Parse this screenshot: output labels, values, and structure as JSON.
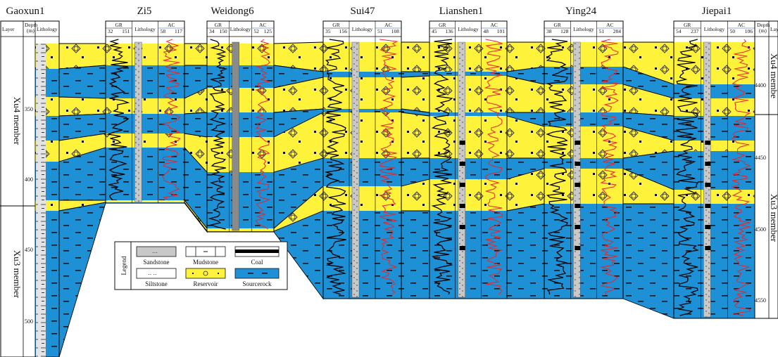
{
  "wells": [
    {
      "name": "Gaoxun1",
      "gr": [],
      "ac": [],
      "depth_label": "Depth\n(m)",
      "lith_label": "Lithology"
    },
    {
      "name": "Zi5",
      "gr": [
        "32",
        "151"
      ],
      "ac": [
        "58",
        "117"
      ]
    },
    {
      "name": "Weidong6",
      "gr": [
        "34",
        "150"
      ],
      "ac": [
        "52",
        "125"
      ]
    },
    {
      "name": "Sui47",
      "gr": [
        "35",
        "156"
      ],
      "ac": [
        "51",
        "108"
      ]
    },
    {
      "name": "Lianshen1",
      "gr": [
        "45",
        "136"
      ],
      "ac": [
        "48",
        "101"
      ]
    },
    {
      "name": "Ying24",
      "gr": [
        "38",
        "128"
      ],
      "ac": [
        "51",
        "284"
      ]
    },
    {
      "name": "Jiepai1",
      "gr": [
        "54",
        "237"
      ],
      "ac": [
        "50",
        "106"
      ]
    }
  ],
  "headers": {
    "layer": "Layer",
    "depth": "Depth",
    "depth_unit": "(m)",
    "lithology": "Lithology",
    "gr": "GR",
    "ac": "AC",
    "right_layer": "Lay"
  },
  "left_depth_ticks": [
    "350",
    "400",
    "450",
    "500"
  ],
  "right_depth_ticks": [
    "4400",
    "4450",
    "4500",
    "4550"
  ],
  "layers_left": [
    "Xu4 member",
    "Xu3 member"
  ],
  "layers_right": [
    "Xu4 membe",
    "Xu3 member"
  ],
  "legend": {
    "title": "Legend",
    "items": [
      {
        "label": "Sandstone",
        "pattern": "sandstone"
      },
      {
        "label": "Mudstone",
        "pattern": "mudstone"
      },
      {
        "label": "Coal",
        "pattern": "coal"
      },
      {
        "label": "Siltstone",
        "pattern": "siltstone"
      },
      {
        "label": "Reservoir",
        "pattern": "reservoir"
      },
      {
        "label": "Sourcerock",
        "pattern": "sourcerock"
      }
    ]
  },
  "colors": {
    "reservoir": "#fff23a",
    "sourcerock": "#1e90d6",
    "gr_curve": "#000000",
    "ac_curve": "#e8262b",
    "sand_column": "#c8c8c8",
    "coal": "#000000"
  }
}
